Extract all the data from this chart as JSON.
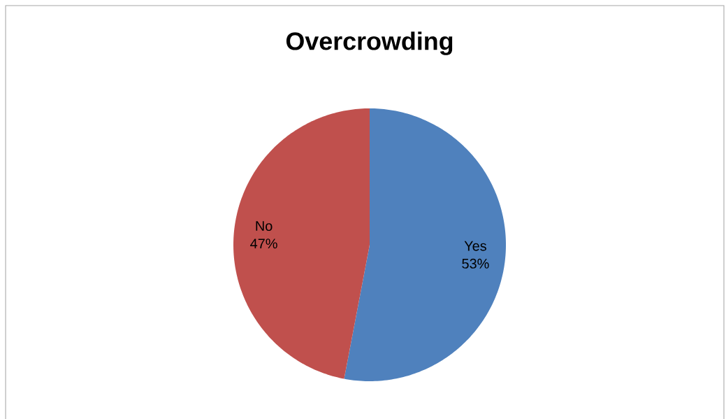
{
  "chart_data": {
    "type": "pie",
    "title": "Overcrowding",
    "categories": [
      "Yes",
      "No"
    ],
    "values": [
      53,
      47
    ],
    "value_labels": [
      "53%",
      "47%"
    ],
    "colors": [
      "#4f81bd",
      "#c0504d"
    ]
  }
}
